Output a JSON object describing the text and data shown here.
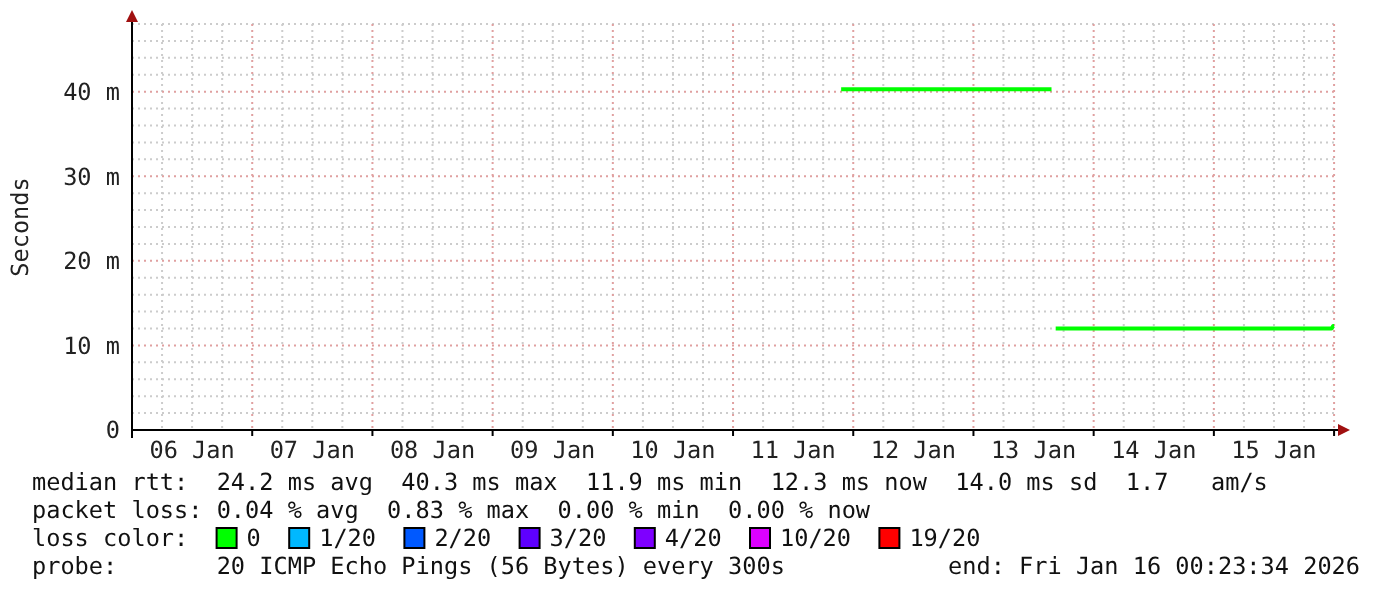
{
  "chart_data": {
    "type": "line",
    "ylabel": "Seconds",
    "xlim": [
      "2026-01-06T00:00",
      "2026-01-16T00:23"
    ],
    "xticks": [
      {
        "value": "2026-01-06T12:00",
        "label": "06 Jan"
      },
      {
        "value": "2026-01-07T12:00",
        "label": "07 Jan"
      },
      {
        "value": "2026-01-08T12:00",
        "label": "08 Jan"
      },
      {
        "value": "2026-01-09T12:00",
        "label": "09 Jan"
      },
      {
        "value": "2026-01-10T12:00",
        "label": "10 Jan"
      },
      {
        "value": "2026-01-11T12:00",
        "label": "11 Jan"
      },
      {
        "value": "2026-01-12T12:00",
        "label": "12 Jan"
      },
      {
        "value": "2026-01-13T12:00",
        "label": "13 Jan"
      },
      {
        "value": "2026-01-14T12:00",
        "label": "14 Jan"
      },
      {
        "value": "2026-01-15T12:00",
        "label": "15 Jan"
      }
    ],
    "ylim": [
      0,
      48
    ],
    "yticks": [
      0,
      {
        "value": 10,
        "label": "10 m"
      },
      {
        "value": 20,
        "label": "20 m"
      },
      {
        "value": 30,
        "label": "30 m"
      },
      {
        "value": 40,
        "label": "40 m"
      }
    ],
    "grid": true,
    "legend": "bottom",
    "legend_title": "loss color:",
    "series": [
      {
        "name": "0",
        "color": "#00ff00",
        "x": [
          "2026-01-11T21:35",
          "2026-01-13T15:35",
          "2026-01-13T16:00",
          "2026-01-13T16:25",
          "2026-01-14T12:00",
          "2026-01-15T12:00",
          "2026-01-15T23:30",
          "2026-01-15T23:50",
          "2026-01-16T00:00"
        ],
        "values": [
          40.3,
          40.3,
          null,
          12,
          12,
          12,
          12,
          12.3,
          12.3
        ]
      },
      {
        "name": "1/20",
        "color": "#00b8ff"
      },
      {
        "name": "2/20",
        "color": "#0059ff"
      },
      {
        "name": "3/20",
        "color": "#5e00ff"
      },
      {
        "name": "4/20",
        "color": "#7e00ff"
      },
      {
        "name": "10/20",
        "color": "#dd00ff"
      },
      {
        "name": "19/20",
        "color": "#ff0000"
      }
    ],
    "annotations": [
      "median rtt:  24.2 ms avg  40.3 ms max  11.9 ms min  12.3 ms now  14.0 ms sd  1.7   am/s",
      "packet loss: 0.04 % avg  0.83 % max  0.00 % min  0.00 % now",
      "probe:       20 ICMP Echo Pings (56 Bytes) every 300s",
      "end: Fri Jan 16 00:23:34 2026"
    ]
  }
}
